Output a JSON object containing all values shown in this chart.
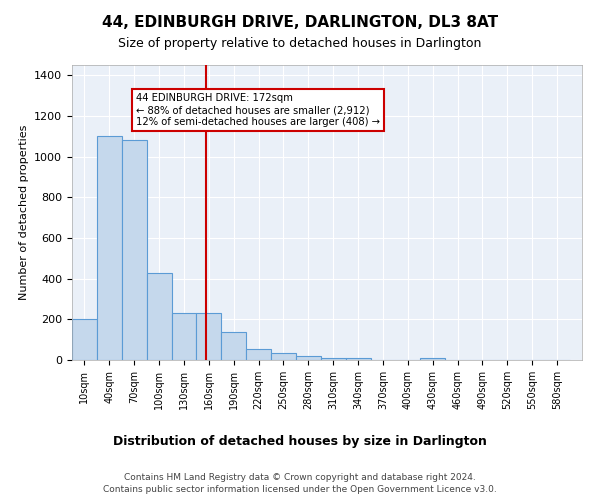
{
  "title": "44, EDINBURGH DRIVE, DARLINGTON, DL3 8AT",
  "subtitle": "Size of property relative to detached houses in Darlington",
  "xlabel": "Distribution of detached houses by size in Darlington",
  "ylabel": "Number of detached properties",
  "bar_values": [
    200,
    1100,
    1080,
    430,
    230,
    230,
    140,
    55,
    35,
    20,
    10,
    10,
    0,
    0,
    10,
    0,
    0,
    0,
    0,
    0
  ],
  "bin_starts": [
    10,
    40,
    70,
    100,
    130,
    160,
    190,
    220,
    250,
    280,
    310,
    340,
    370,
    400,
    430,
    460,
    490,
    520,
    550,
    580
  ],
  "bin_width": 30,
  "bar_color": "#c5d8ec",
  "bar_edge_color": "#5b9bd5",
  "background_color": "#eaf0f8",
  "red_line_x": 172,
  "annotation_text": "44 EDINBURGH DRIVE: 172sqm\n← 88% of detached houses are smaller (2,912)\n12% of semi-detached houses are larger (408) →",
  "annotation_box_color": "#ffffff",
  "annotation_box_edge": "#cc0000",
  "ylim": [
    0,
    1450
  ],
  "yticks": [
    0,
    200,
    400,
    600,
    800,
    1000,
    1200,
    1400
  ],
  "footer_line1": "Contains HM Land Registry data © Crown copyright and database right 2024.",
  "footer_line2": "Contains public sector information licensed under the Open Government Licence v3.0."
}
